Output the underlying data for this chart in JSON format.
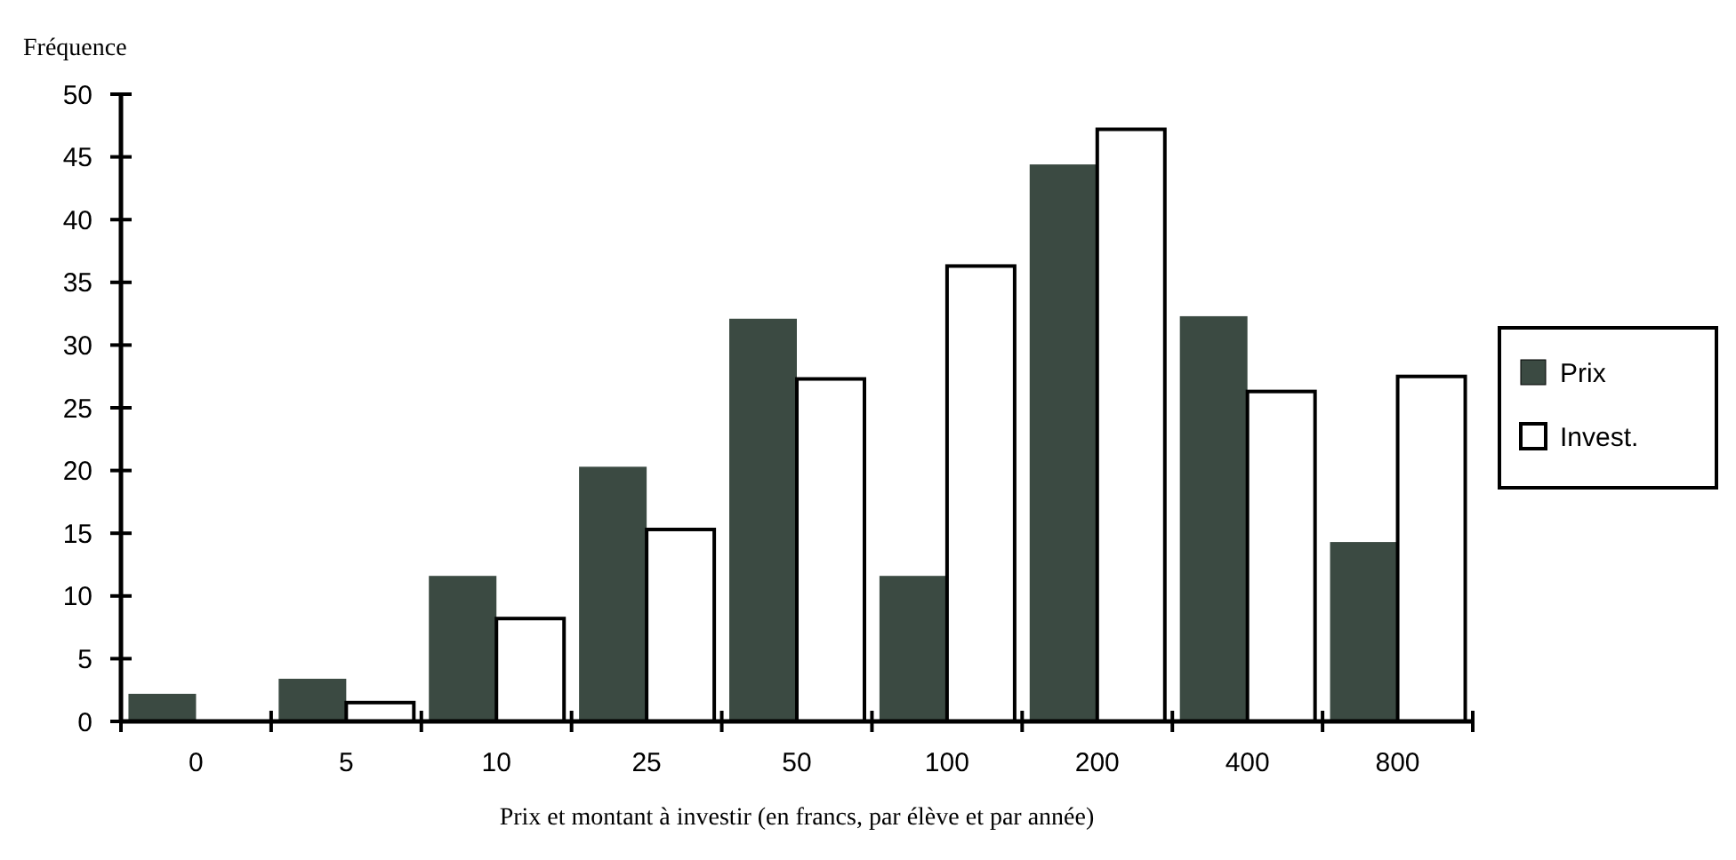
{
  "chart_data": {
    "type": "bar",
    "ylabel": "Fréquence",
    "xlabel": "Prix et montant à investir (en francs, par élève et par année)",
    "categories": [
      "0",
      "5",
      "10",
      "25",
      "50",
      "100",
      "200",
      "400",
      "800"
    ],
    "series": [
      {
        "name": "Prix",
        "color": "#3b4a42",
        "values": [
          2.2,
          3.4,
          11.6,
          20.3,
          32.1,
          11.6,
          44.4,
          32.3,
          14.3
        ]
      },
      {
        "name": "Invest.",
        "color": "#ffffff",
        "values": [
          0,
          1.5,
          8.2,
          15.3,
          27.3,
          36.3,
          47.2,
          26.3,
          27.5
        ]
      }
    ],
    "ylim": [
      0,
      50
    ],
    "yticks": [
      0,
      5,
      10,
      15,
      20,
      25,
      30,
      35,
      40,
      45,
      50
    ],
    "grid": false,
    "legend": "right"
  }
}
